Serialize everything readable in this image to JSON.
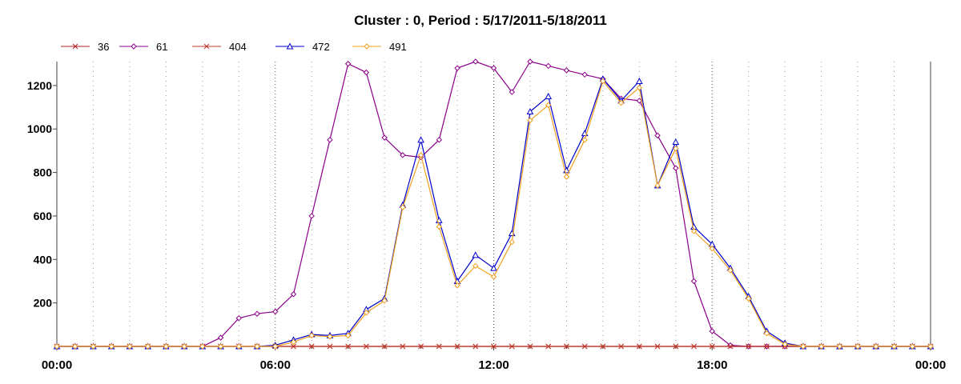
{
  "chart_data": {
    "type": "line",
    "title": "Cluster : 0, Period : 5/17/2011-5/18/2011",
    "xlabel": "",
    "ylabel": "",
    "x_ticks": [
      "00:00",
      "06:00",
      "12:00",
      "18:00",
      "00:00"
    ],
    "y_ticks": [
      "200",
      "400",
      "600",
      "800",
      "1000",
      "1200"
    ],
    "xlim_hours": [
      0,
      24
    ],
    "ylim": [
      0,
      1310
    ],
    "grid": "vertical dotted",
    "legend_position": "top-left",
    "x_hours": [
      0,
      0.5,
      1,
      1.5,
      2,
      2.5,
      3,
      3.5,
      4,
      4.5,
      5,
      5.5,
      6,
      6.5,
      7,
      7.5,
      8,
      8.5,
      9,
      9.5,
      10,
      10.5,
      11,
      11.5,
      12,
      12.5,
      13,
      13.5,
      14,
      14.5,
      15,
      15.5,
      16,
      16.5,
      17,
      17.5,
      18,
      18.5,
      19,
      19.5,
      20,
      20.5,
      21,
      21.5,
      22,
      22.5,
      23,
      23.5,
      24
    ],
    "series": [
      {
        "name": "36",
        "color": "#b22222",
        "marker": "x",
        "values": [
          0,
          0,
          0,
          0,
          0,
          0,
          0,
          0,
          0,
          0,
          0,
          0,
          0,
          0,
          0,
          0,
          0,
          0,
          0,
          0,
          0,
          0,
          0,
          0,
          0,
          0,
          0,
          0,
          0,
          0,
          0,
          0,
          0,
          0,
          0,
          0,
          0,
          0,
          0,
          0,
          0,
          0,
          0,
          0,
          0,
          0,
          0,
          0,
          0
        ]
      },
      {
        "name": "61",
        "color": "#8b008b",
        "marker": "diamond",
        "values": [
          0,
          0,
          0,
          0,
          0,
          0,
          0,
          0,
          0,
          40,
          130,
          150,
          160,
          240,
          600,
          950,
          1300,
          1260,
          960,
          880,
          870,
          950,
          1280,
          1310,
          1280,
          1170,
          1310,
          1290,
          1270,
          1250,
          1230,
          1140,
          1130,
          970,
          820,
          300,
          70,
          5,
          0,
          0,
          0,
          0,
          0,
          0,
          0,
          0,
          0,
          0,
          0
        ]
      },
      {
        "name": "404",
        "color": "#c0392b",
        "marker": "x",
        "values": [
          0,
          0,
          0,
          0,
          0,
          0,
          0,
          0,
          0,
          0,
          0,
          0,
          0,
          0,
          0,
          0,
          0,
          0,
          0,
          0,
          0,
          0,
          0,
          0,
          0,
          0,
          0,
          0,
          0,
          0,
          0,
          0,
          0,
          0,
          0,
          0,
          0,
          0,
          0,
          0,
          0,
          0,
          0,
          0,
          0,
          0,
          0,
          0,
          0
        ]
      },
      {
        "name": "472",
        "color": "#0000cc",
        "marker": "triangle",
        "values": [
          0,
          0,
          0,
          0,
          0,
          0,
          0,
          0,
          0,
          0,
          0,
          0,
          5,
          30,
          55,
          50,
          60,
          170,
          220,
          650,
          950,
          580,
          300,
          420,
          360,
          520,
          1080,
          1150,
          810,
          980,
          1230,
          1130,
          1220,
          740,
          940,
          550,
          470,
          360,
          230,
          70,
          15,
          0,
          0,
          0,
          0,
          0,
          0,
          0,
          0
        ]
      },
      {
        "name": "491",
        "color": "#f0a020",
        "marker": "diamond",
        "values": [
          0,
          0,
          0,
          0,
          0,
          0,
          0,
          0,
          0,
          0,
          0,
          0,
          0,
          20,
          50,
          45,
          50,
          155,
          210,
          640,
          880,
          550,
          280,
          370,
          320,
          480,
          1040,
          1110,
          780,
          950,
          1220,
          1120,
          1190,
          740,
          910,
          530,
          450,
          350,
          220,
          60,
          10,
          0,
          0,
          0,
          0,
          0,
          0,
          0,
          0
        ]
      }
    ]
  }
}
